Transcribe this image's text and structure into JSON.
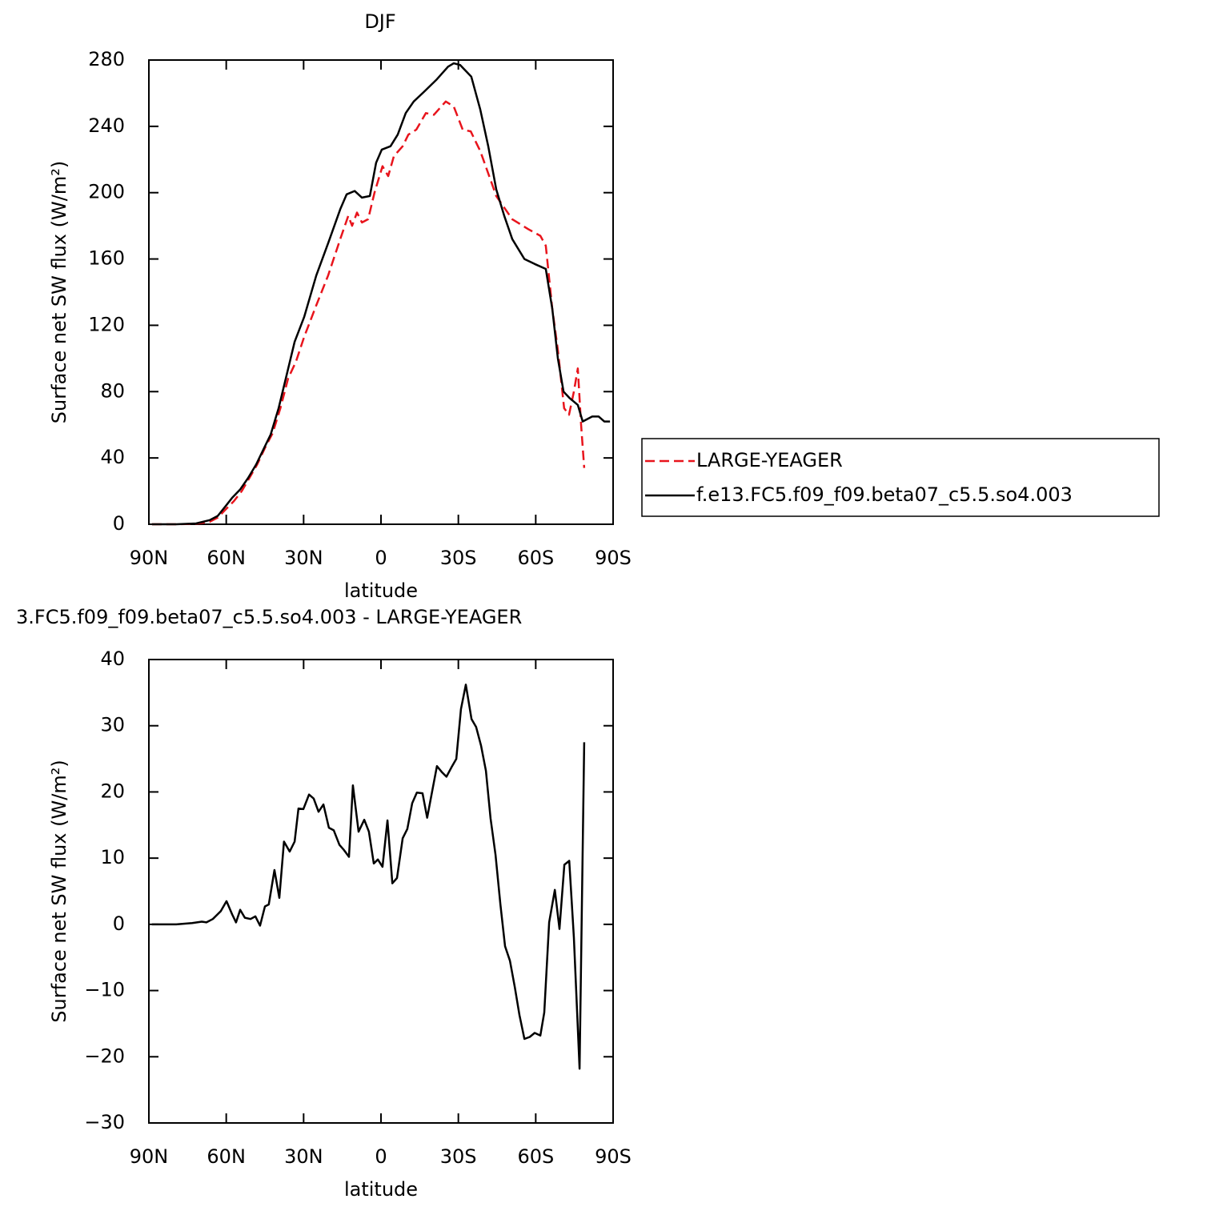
{
  "chart_data": [
    {
      "type": "line",
      "title": "DJF",
      "xlabel": "latitude",
      "ylabel": "Surface net SW flux (W/m²)",
      "xlim": [
        90,
        -90
      ],
      "xticks": [
        {
          "value": 90,
          "label": "90N"
        },
        {
          "value": 60,
          "label": "60N"
        },
        {
          "value": 30,
          "label": "30N"
        },
        0,
        {
          "value": -30,
          "label": "30S"
        },
        {
          "value": -60,
          "label": "60S"
        },
        {
          "value": -90,
          "label": "90S"
        }
      ],
      "ylim": [
        0,
        280
      ],
      "yticks": [
        0,
        40,
        80,
        120,
        160,
        200,
        240,
        280
      ],
      "legend": "outside-right",
      "series": [
        {
          "name": "LARGE-YEAGER",
          "color": "#e8141c",
          "linestyle": "dashed",
          "x": [
            88.8,
            79.4,
            71.7,
            66.4,
            63.3,
            60.2,
            57,
            54,
            51,
            48,
            45,
            42,
            39,
            36,
            33,
            29.8,
            25.1,
            20.5,
            15.8,
            12.7,
            11.2,
            9.3,
            7.4,
            5,
            2.5,
            -0.6,
            -2.8,
            -5,
            -8.4,
            -10.6,
            -13.7,
            -17.4,
            -20.5,
            -25.1,
            -28.2,
            -31.7,
            -34.8,
            -38.5,
            -43.1,
            -44.7,
            -50.9,
            -57.1,
            -61.8,
            -63.9,
            -66.4,
            -68.6,
            -71,
            -72.9,
            -74.8,
            -76.3,
            -77.6,
            -78.8
          ],
          "values": [
            0,
            0,
            0.3,
            1.5,
            4,
            9,
            14,
            20,
            28,
            36,
            46,
            55,
            70,
            88,
            98,
            113,
            132,
            150,
            172,
            186,
            180,
            188,
            182,
            184,
            200,
            216,
            210,
            222,
            228,
            235,
            238,
            248,
            247,
            255,
            252,
            238,
            237,
            225,
            205,
            198,
            184,
            178,
            174,
            168,
            130,
            105,
            70,
            66,
            80,
            94,
            60,
            34
          ]
        },
        {
          "name": "f.e13.FC5.f09_f09.beta07_c5.5.so4.003",
          "color": "#000000",
          "linestyle": "solid",
          "x": [
            88.8,
            79.4,
            71.7,
            66.4,
            63.3,
            60.2,
            57.7,
            54.6,
            51.5,
            48.4,
            45.3,
            42.8,
            39.7,
            36.6,
            33.5,
            29.8,
            25.1,
            20.4,
            15.8,
            13.3,
            10.2,
            7.4,
            4.3,
            1.9,
            -0.3,
            -3.7,
            -6.5,
            -9.6,
            -12.7,
            -16.8,
            -21.4,
            -26,
            -28.2,
            -30.7,
            -35,
            -38.5,
            -41.6,
            -44.7,
            -47.8,
            -50.9,
            -55.6,
            -59.6,
            -63.9,
            -66.4,
            -68.6,
            -70.8,
            -73.2,
            -76.3,
            -78.2,
            -81.9,
            -84.4,
            -86.6,
            -88.8
          ],
          "values": [
            0,
            0,
            0.5,
            2.5,
            5,
            11,
            16,
            21,
            28,
            36,
            46,
            54,
            70,
            90,
            110,
            125,
            150,
            170,
            190,
            199,
            201,
            197,
            198,
            218,
            226,
            228,
            235,
            248,
            255,
            261,
            268,
            276,
            278,
            277,
            270,
            250,
            228,
            202,
            186,
            172,
            160,
            157,
            154,
            130,
            100,
            80,
            76,
            72,
            62,
            65,
            65,
            62,
            62
          ]
        }
      ]
    },
    {
      "type": "line",
      "title": "3.FC5.f09_f09.beta07_c5.5.so4.003 - LARGE-YEAGER",
      "xlabel": "latitude",
      "ylabel": "Surface net SW flux (W/m²)",
      "xlim": [
        90,
        -90
      ],
      "xticks": [
        {
          "value": 90,
          "label": "90N"
        },
        {
          "value": 60,
          "label": "60N"
        },
        {
          "value": 30,
          "label": "30N"
        },
        0,
        {
          "value": -30,
          "label": "30S"
        },
        {
          "value": -60,
          "label": "60S"
        },
        {
          "value": -90,
          "label": "90S"
        }
      ],
      "ylim": [
        -30,
        40
      ],
      "yticks": [
        {
          "value": -30,
          "label": "−30"
        },
        {
          "value": -20,
          "label": "−20"
        },
        {
          "value": -10,
          "label": "−10"
        },
        0,
        10,
        20,
        30,
        40
      ],
      "series": [
        {
          "color": "#000000",
          "linestyle": "solid",
          "x": [
            88.8,
            79.4,
            73.2,
            69.5,
            67.7,
            65.2,
            62.1,
            59.9,
            57.7,
            56.2,
            54.6,
            52.8,
            50.6,
            48.7,
            46.9,
            45,
            43.5,
            41.3,
            39.4,
            37.6,
            35.4,
            33.5,
            32,
            30.1,
            27.9,
            26.1,
            24.2,
            22.3,
            20.2,
            18.3,
            16.1,
            14.3,
            12.4,
            10.9,
            8.7,
            6.5,
            4.7,
            2.8,
            1.2,
            -0.6,
            -2.5,
            -4.4,
            -6.2,
            -8.4,
            -10.2,
            -12.1,
            -13.9,
            -16.1,
            -17.9,
            -19.8,
            -21.7,
            -23.6,
            -25.4,
            -27.3,
            -29.2,
            -31,
            -32.9,
            -35.1,
            -36.9,
            -38.8,
            -40.7,
            -42.5,
            -44.4,
            -46.3,
            -48.1,
            -50,
            -51.9,
            -53.7,
            -55.6,
            -57.7,
            -59.6,
            -61.8,
            -63.3,
            -65.2,
            -67.4,
            -69.2,
            -71.1,
            -73,
            -74.8,
            -77,
            -78.8
          ],
          "values": [
            0,
            0,
            0.2,
            0.4,
            0.3,
            0.8,
            2,
            3.5,
            1.5,
            0.3,
            2.2,
            1,
            0.8,
            1.2,
            -0.2,
            2.7,
            3,
            8.2,
            4,
            12.5,
            11,
            12.5,
            17.5,
            17.4,
            19.6,
            19,
            17,
            18.1,
            14.6,
            14.2,
            12,
            11.2,
            10.2,
            21,
            14,
            15.8,
            14,
            9.2,
            9.8,
            8.7,
            15.7,
            6.2,
            7,
            13,
            14.4,
            18.3,
            19.9,
            19.8,
            16.1,
            20,
            23.9,
            23,
            22.3,
            23.7,
            25,
            32.5,
            36.2,
            31,
            29.8,
            27,
            23.2,
            16,
            10.5,
            3,
            -3.3,
            -5.5,
            -9.5,
            -13.7,
            -17.3,
            -17,
            -16.4,
            -16.8,
            -13.3,
            0.3,
            5.2,
            -0.7,
            9,
            9.6,
            -2,
            -21.8,
            27.5
          ]
        }
      ]
    }
  ]
}
